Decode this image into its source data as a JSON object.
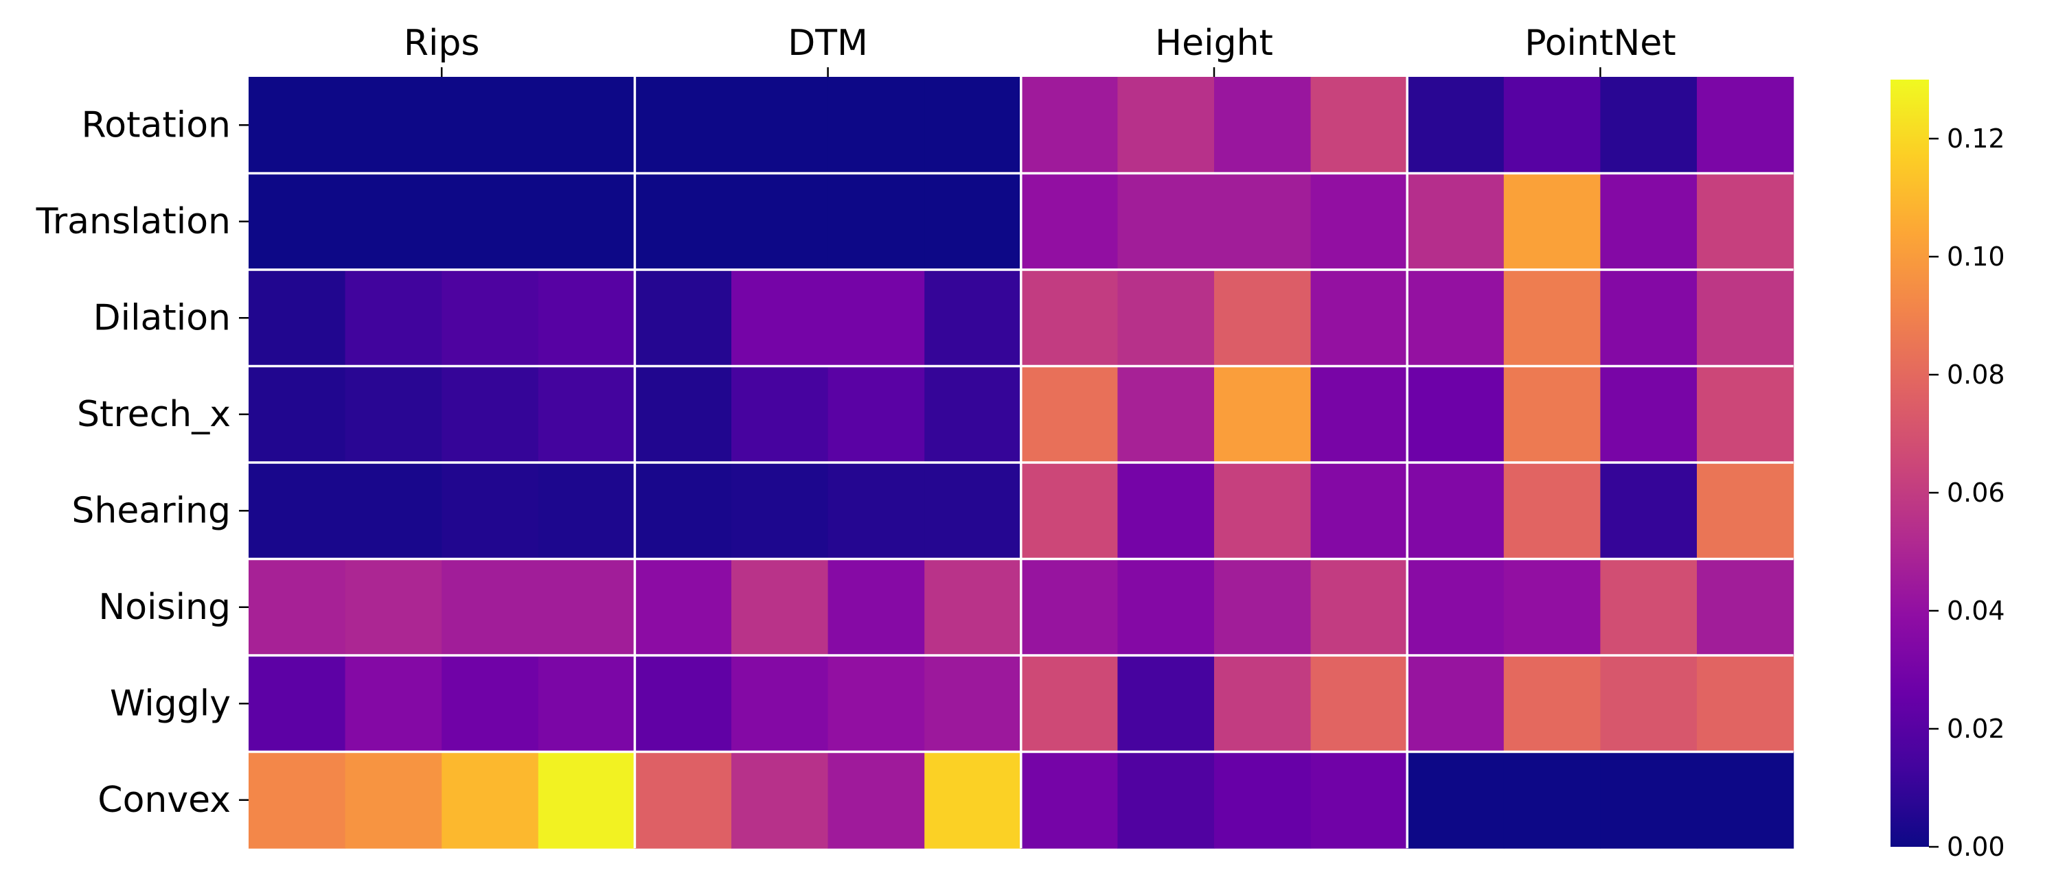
{
  "chart_data": {
    "type": "heatmap",
    "colormap": "plasma",
    "column_groups": [
      "Rips",
      "DTM",
      "Height",
      "PointNet"
    ],
    "row_labels": [
      "Rotation",
      "Translation",
      "Dilation",
      "Strech_x",
      "Shearing",
      "Noising",
      "Wiggly",
      "Convex"
    ],
    "columns_per_group": 4,
    "values": [
      [
        0.0,
        0.0,
        0.0,
        0.0,
        0.0,
        0.0,
        0.0,
        0.0,
        0.045,
        0.055,
        0.043,
        0.063,
        0.007,
        0.02,
        0.007,
        0.032
      ],
      [
        0.0,
        0.0,
        0.0,
        0.0,
        0.0,
        0.0,
        0.0,
        0.0,
        0.04,
        0.046,
        0.046,
        0.04,
        0.054,
        0.102,
        0.035,
        0.062
      ],
      [
        0.005,
        0.013,
        0.017,
        0.02,
        0.006,
        0.03,
        0.03,
        0.01,
        0.06,
        0.055,
        0.075,
        0.041,
        0.041,
        0.088,
        0.035,
        0.058
      ],
      [
        0.005,
        0.007,
        0.01,
        0.014,
        0.005,
        0.015,
        0.021,
        0.01,
        0.083,
        0.048,
        0.101,
        0.031,
        0.027,
        0.087,
        0.031,
        0.065
      ],
      [
        0.003,
        0.003,
        0.005,
        0.004,
        0.003,
        0.004,
        0.006,
        0.006,
        0.065,
        0.03,
        0.062,
        0.035,
        0.034,
        0.078,
        0.01,
        0.085
      ],
      [
        0.048,
        0.05,
        0.046,
        0.046,
        0.038,
        0.056,
        0.036,
        0.056,
        0.042,
        0.035,
        0.046,
        0.06,
        0.037,
        0.04,
        0.068,
        0.046
      ],
      [
        0.022,
        0.035,
        0.028,
        0.032,
        0.023,
        0.035,
        0.04,
        0.044,
        0.066,
        0.015,
        0.06,
        0.078,
        0.042,
        0.08,
        0.072,
        0.078
      ],
      [
        0.092,
        0.097,
        0.11,
        0.128,
        0.076,
        0.055,
        0.045,
        0.118,
        0.03,
        0.018,
        0.025,
        0.028,
        0.0,
        0.0,
        0.0,
        0.0
      ]
    ],
    "colorbar": {
      "range": [
        0.0,
        0.13
      ],
      "ticks": [
        0.0,
        0.02,
        0.04,
        0.06,
        0.08,
        0.1,
        0.12
      ],
      "tick_labels": [
        "0.00",
        "0.02",
        "0.04",
        "0.06",
        "0.08",
        "0.10",
        "0.12"
      ]
    },
    "grid_color": "#ffffff"
  }
}
